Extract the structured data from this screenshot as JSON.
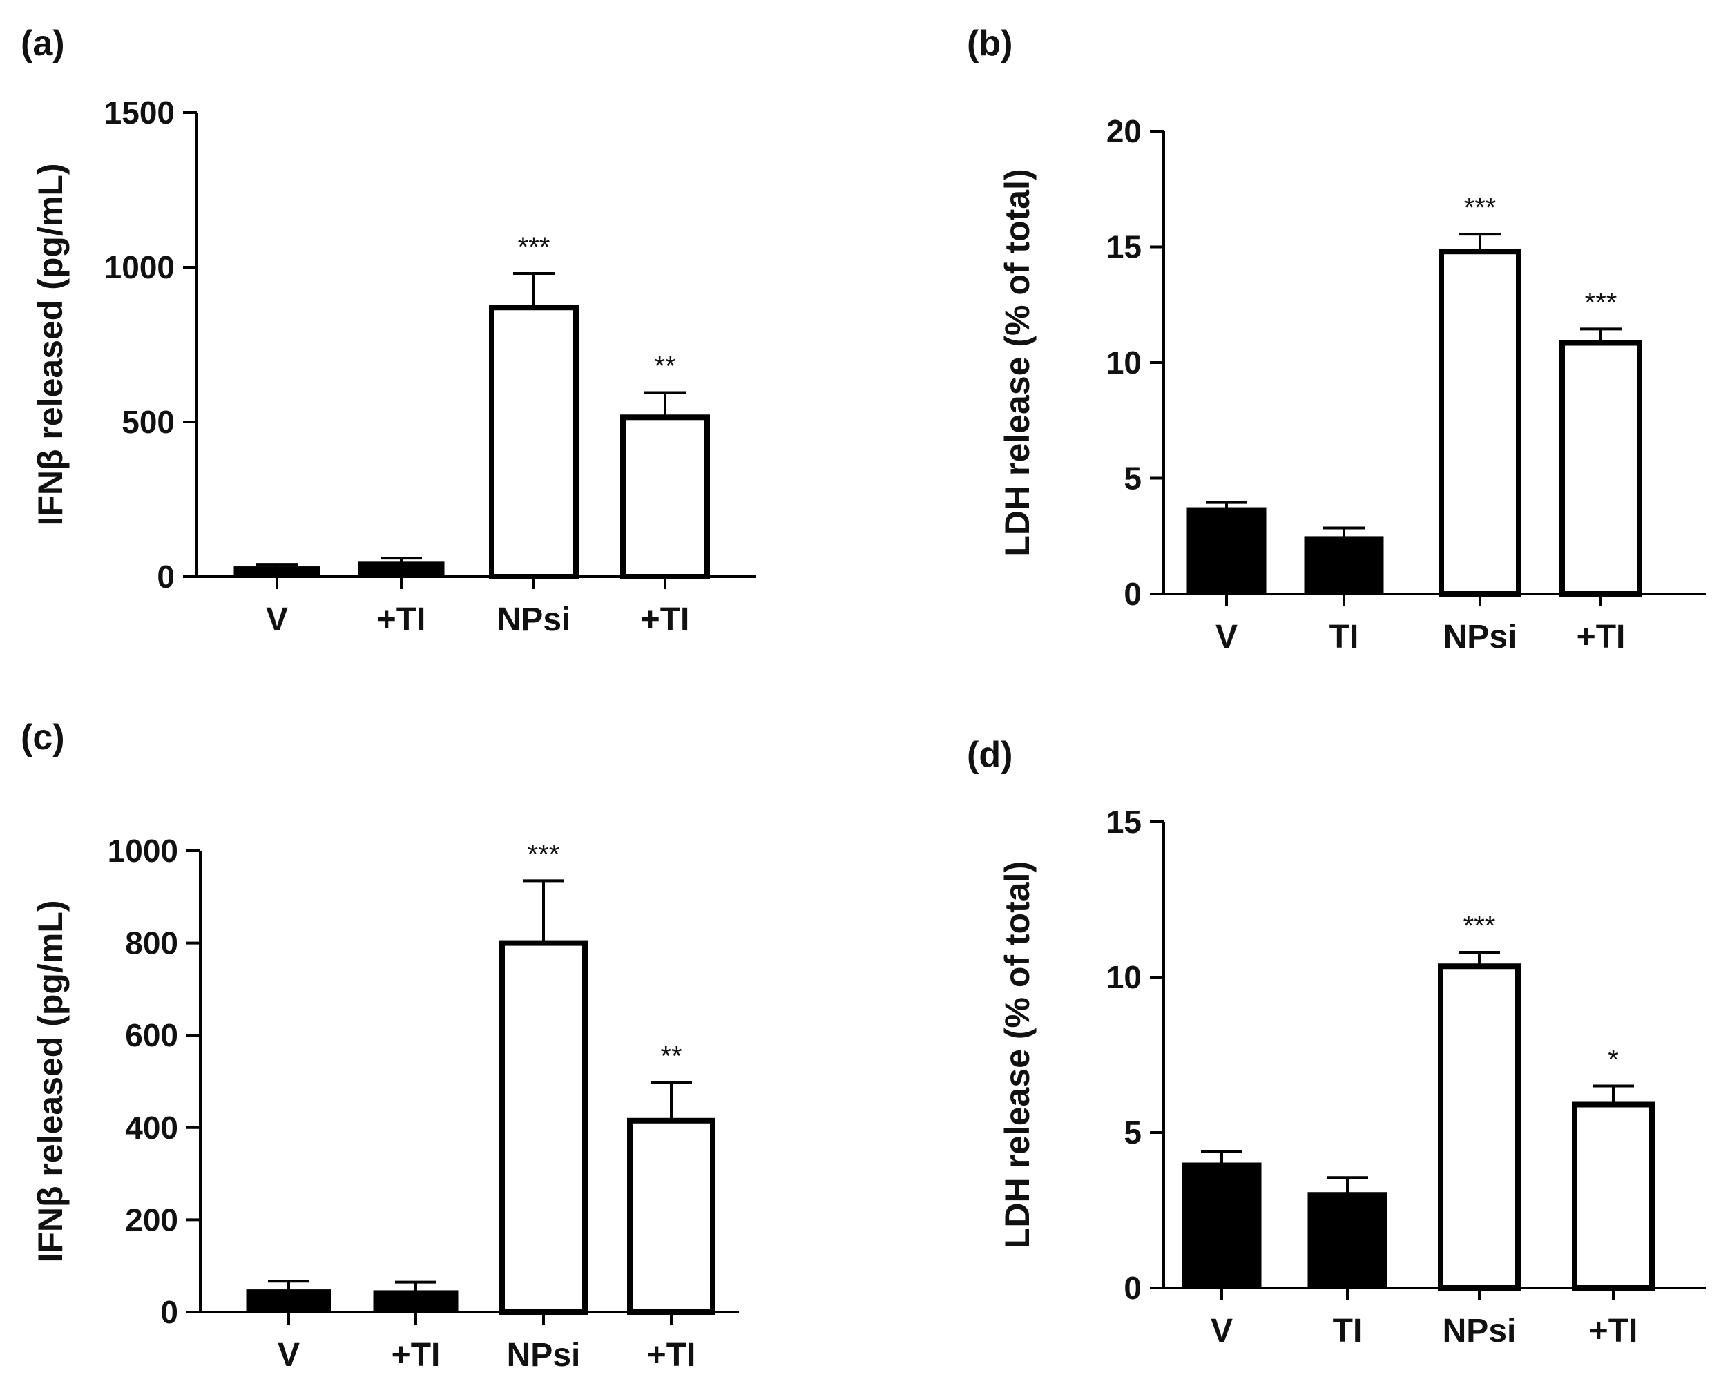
{
  "colors": {
    "filled": "#000000",
    "open": "#ffffff",
    "stroke": "#000000"
  },
  "chart_data": [
    {
      "panel": "(a)",
      "type": "bar",
      "ylabel": "IFNβ released (pg/mL)",
      "ylim": [
        0,
        1500
      ],
      "yticks": [
        0,
        500,
        1000,
        1500
      ],
      "categories": [
        "V",
        "+TI",
        "NPsi",
        "+TI"
      ],
      "values": [
        30,
        45,
        870,
        515
      ],
      "errors": [
        10,
        15,
        110,
        80
      ],
      "fill": [
        "filled",
        "filled",
        "open",
        "open"
      ],
      "significance": [
        "",
        "",
        "***",
        "**"
      ]
    },
    {
      "panel": "(b)",
      "type": "bar",
      "ylabel": "LDH release (% of total)",
      "ylim": [
        0,
        20
      ],
      "yticks": [
        0,
        5,
        10,
        15,
        20
      ],
      "categories": [
        "V",
        "TI",
        "NPsi",
        "+TI"
      ],
      "values": [
        3.7,
        2.45,
        14.8,
        10.85
      ],
      "errors": [
        0.25,
        0.4,
        0.75,
        0.6
      ],
      "fill": [
        "filled",
        "filled",
        "open",
        "open"
      ],
      "significance": [
        "",
        "",
        "***",
        "***"
      ]
    },
    {
      "panel": "(c)",
      "type": "bar",
      "ylabel": "IFNβ released (pg/mL)",
      "ylim": [
        0,
        1000
      ],
      "yticks": [
        0,
        200,
        400,
        600,
        800,
        1000
      ],
      "categories": [
        "V",
        "+TI",
        "NPsi",
        "+TI"
      ],
      "values": [
        47,
        45,
        800,
        415
      ],
      "errors": [
        20,
        20,
        135,
        83
      ],
      "fill": [
        "filled",
        "filled",
        "open",
        "open"
      ],
      "significance": [
        "",
        "",
        "***",
        "**"
      ]
    },
    {
      "panel": "(d)",
      "type": "bar",
      "ylabel": "LDH release (% of total)",
      "ylim": [
        0,
        15
      ],
      "yticks": [
        0,
        5,
        10,
        15
      ],
      "categories": [
        "V",
        "TI",
        "NPsi",
        "+TI"
      ],
      "values": [
        4.0,
        3.05,
        10.35,
        5.9
      ],
      "errors": [
        0.4,
        0.5,
        0.45,
        0.6
      ],
      "fill": [
        "filled",
        "filled",
        "open",
        "open"
      ],
      "significance": [
        "",
        "",
        "***",
        "*"
      ]
    }
  ]
}
